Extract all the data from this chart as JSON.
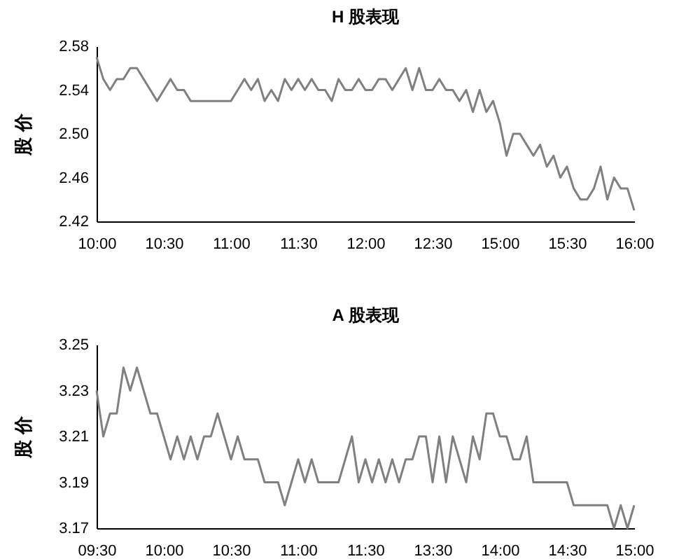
{
  "chart_data": [
    {
      "type": "line",
      "title": "H 股表现",
      "ylabel": "股 价",
      "grid": false,
      "categories": [
        "10:00",
        null,
        null,
        null,
        null,
        null,
        null,
        null,
        null,
        null,
        "10:30",
        null,
        null,
        null,
        null,
        null,
        null,
        null,
        null,
        null,
        "11:00",
        null,
        null,
        null,
        null,
        null,
        null,
        null,
        null,
        null,
        "11:30",
        null,
        null,
        null,
        null,
        null,
        null,
        null,
        null,
        null,
        "12:00",
        null,
        null,
        null,
        null,
        null,
        null,
        null,
        null,
        null,
        "12:30",
        null,
        null,
        null,
        null,
        null,
        null,
        null,
        null,
        null,
        "15:00",
        null,
        null,
        null,
        null,
        null,
        null,
        null,
        null,
        null,
        "15:30",
        null,
        null,
        null,
        null,
        null,
        null,
        null,
        null,
        null,
        "16:00"
      ],
      "series": [
        {
          "color": "#808080",
          "values": [
            2.57,
            2.55,
            2.54,
            2.55,
            2.55,
            2.56,
            2.56,
            2.55,
            2.54,
            2.53,
            2.54,
            2.55,
            2.54,
            2.54,
            2.53,
            2.53,
            2.53,
            2.53,
            2.53,
            2.53,
            2.53,
            2.54,
            2.55,
            2.54,
            2.55,
            2.53,
            2.54,
            2.53,
            2.55,
            2.54,
            2.55,
            2.54,
            2.55,
            2.54,
            2.54,
            2.53,
            2.55,
            2.54,
            2.54,
            2.55,
            2.54,
            2.54,
            2.55,
            2.55,
            2.54,
            2.55,
            2.56,
            2.54,
            2.56,
            2.54,
            2.54,
            2.55,
            2.54,
            2.54,
            2.53,
            2.54,
            2.52,
            2.54,
            2.52,
            2.53,
            2.51,
            2.48,
            2.5,
            2.5,
            2.49,
            2.48,
            2.49,
            2.47,
            2.48,
            2.46,
            2.47,
            2.45,
            2.44,
            2.44,
            2.45,
            2.47,
            2.44,
            2.46,
            2.45,
            2.45,
            2.43
          ]
        }
      ],
      "ylim": [
        2.42,
        2.58
      ],
      "yticks": [
        2.42,
        2.46,
        {
          "value": 2.5,
          "label": "2.50"
        },
        2.54,
        2.58
      ]
    },
    {
      "type": "line",
      "title": "A 股表现",
      "ylabel": "股 价",
      "grid": false,
      "categories": [
        "09:30",
        null,
        null,
        null,
        null,
        null,
        null,
        null,
        null,
        null,
        "10:00",
        null,
        null,
        null,
        null,
        null,
        null,
        null,
        null,
        null,
        "10:30",
        null,
        null,
        null,
        null,
        null,
        null,
        null,
        null,
        null,
        "11:00",
        null,
        null,
        null,
        null,
        null,
        null,
        null,
        null,
        null,
        "11:30",
        null,
        null,
        null,
        null,
        null,
        null,
        null,
        null,
        null,
        "13:30",
        null,
        null,
        null,
        null,
        null,
        null,
        null,
        null,
        null,
        "14:00",
        null,
        null,
        null,
        null,
        null,
        null,
        null,
        null,
        null,
        "14:30",
        null,
        null,
        null,
        null,
        null,
        null,
        null,
        null,
        null,
        "15:00"
      ],
      "series": [
        {
          "color": "#808080",
          "values": [
            3.23,
            3.21,
            3.22,
            3.22,
            3.24,
            3.23,
            3.24,
            3.23,
            3.22,
            3.22,
            3.21,
            3.2,
            3.21,
            3.2,
            3.21,
            3.2,
            3.21,
            3.21,
            3.22,
            3.21,
            3.2,
            3.21,
            3.2,
            3.2,
            3.2,
            3.19,
            3.19,
            3.19,
            3.18,
            3.19,
            3.2,
            3.19,
            3.2,
            3.19,
            3.19,
            3.19,
            3.19,
            3.2,
            3.21,
            3.19,
            3.2,
            3.19,
            3.2,
            3.19,
            3.2,
            3.19,
            3.2,
            3.2,
            3.21,
            3.21,
            3.19,
            3.21,
            3.19,
            3.21,
            3.2,
            3.19,
            3.21,
            3.2,
            3.22,
            3.22,
            3.21,
            3.21,
            3.2,
            3.2,
            3.21,
            3.19,
            3.19,
            3.19,
            3.19,
            3.19,
            3.19,
            3.18,
            3.18,
            3.18,
            3.18,
            3.18,
            3.18,
            3.17,
            3.18,
            3.17,
            3.18
          ]
        }
      ],
      "ylim": [
        3.17,
        3.25
      ],
      "yticks": [
        3.17,
        3.19,
        3.21,
        3.23,
        3.25
      ]
    }
  ]
}
